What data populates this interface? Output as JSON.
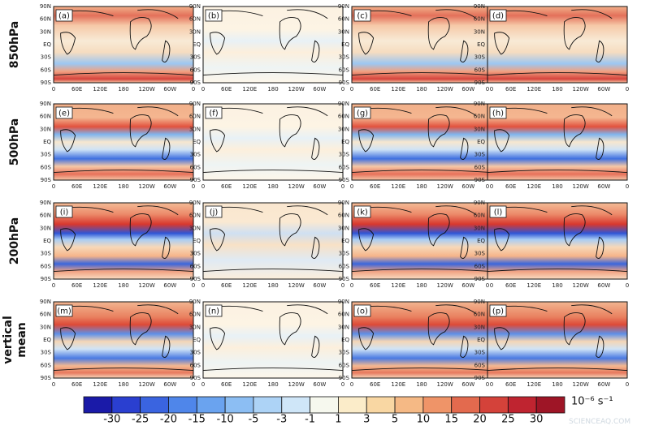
{
  "rows": [
    {
      "label": [
        "850hPa"
      ],
      "panels": [
        "(a)",
        "(b)",
        "(c)",
        "(d)"
      ]
    },
    {
      "label": [
        "500hPa"
      ],
      "panels": [
        "(e)",
        "(f)",
        "(g)",
        "(h)"
      ]
    },
    {
      "label": [
        "200hPa"
      ],
      "panels": [
        "(i)",
        "(j)",
        "(k)",
        "(l)"
      ]
    },
    {
      "label": [
        "vertical",
        "mean"
      ],
      "panels": [
        "(m)",
        "(n)",
        "(o)",
        "(p)"
      ]
    }
  ],
  "lat_ticks": [
    "90N",
    "60N",
    "30N",
    "EQ",
    "30S",
    "60S",
    "90S"
  ],
  "lon_ticks": [
    "0",
    "60E",
    "120E",
    "180",
    "120W",
    "60W",
    "0"
  ],
  "colorbar": {
    "labels": [
      -30,
      -25,
      -20,
      -15,
      -10,
      -5,
      -3,
      -1,
      1,
      3,
      5,
      10,
      15,
      20,
      25,
      30
    ],
    "colors": [
      "#1a1aa8",
      "#2a3fd0",
      "#3a64e0",
      "#4f86ea",
      "#6aa3ef",
      "#8cbef3",
      "#add3f6",
      "#cfe6f8",
      "#f6f8ee",
      "#fbecc9",
      "#f9d7a3",
      "#f5b985",
      "#ef9468",
      "#e36a4e",
      "#d4423a",
      "#bf2430",
      "#9e1526"
    ],
    "unit": "10⁻⁶ s⁻¹"
  },
  "watermark": "SCIENCEAQ.COM"
}
